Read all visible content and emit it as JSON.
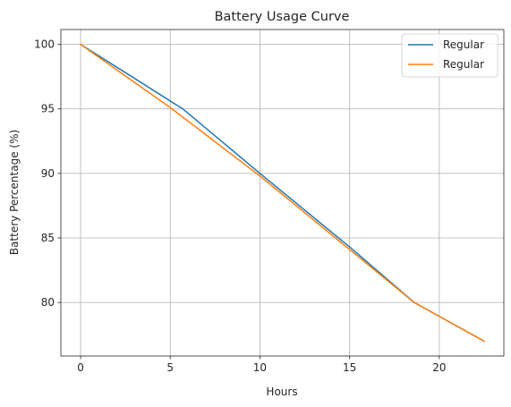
{
  "chart_data": {
    "type": "line",
    "title": "Battery Usage Curve",
    "xlabel": "Hours",
    "ylabel": "Battery Percentage (%)",
    "xlim": [
      -1.1,
      23.6
    ],
    "ylim": [
      75.85,
      101.15
    ],
    "xticks": [
      0,
      5,
      10,
      15,
      20
    ],
    "yticks": [
      80,
      85,
      90,
      95,
      100
    ],
    "grid": true,
    "legend_position": "top-right",
    "series": [
      {
        "name": "Regular",
        "color": "#1f77b4",
        "x": [
          0,
          5.7,
          10,
          15,
          18.6,
          22.5
        ],
        "y": [
          100,
          95,
          90,
          84.3,
          80,
          77
        ]
      },
      {
        "name": "Regular",
        "color": "#ff7f0e",
        "x": [
          0,
          5,
          10,
          15,
          18.6,
          22.5
        ],
        "y": [
          100,
          95.1,
          89.8,
          84.1,
          80,
          77
        ]
      }
    ]
  }
}
